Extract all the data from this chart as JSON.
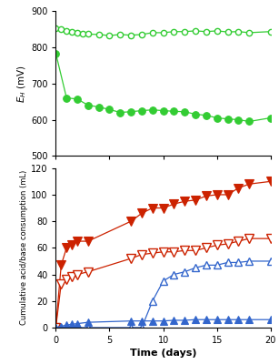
{
  "top": {
    "ylabel": "$E_{H}$ (mV)",
    "ylim": [
      500,
      900
    ],
    "yticks": [
      500,
      600,
      700,
      800,
      900
    ],
    "open_circles": {
      "x": [
        0,
        0.5,
        1,
        1.5,
        2,
        2.5,
        3,
        4,
        5,
        6,
        7,
        8,
        9,
        10,
        11,
        12,
        13,
        14,
        15,
        16,
        17,
        18,
        20
      ],
      "y": [
        852,
        850,
        845,
        843,
        840,
        837,
        836,
        835,
        832,
        835,
        833,
        835,
        840,
        840,
        843,
        843,
        845,
        843,
        845,
        842,
        843,
        840,
        843
      ]
    },
    "filled_circles": {
      "x": [
        0,
        1,
        2,
        3,
        4,
        5,
        6,
        7,
        8,
        9,
        10,
        11,
        12,
        13,
        14,
        15,
        16,
        17,
        18,
        20
      ],
      "y": [
        783,
        660,
        657,
        640,
        635,
        628,
        620,
        622,
        625,
        627,
        625,
        623,
        622,
        615,
        612,
        605,
        602,
        600,
        595,
        605
      ]
    },
    "color": "#33cc33"
  },
  "bottom": {
    "ylabel": "Cumulative acid/base consumption (mL)",
    "xlabel": "Time (days)",
    "ylim": [
      0,
      120
    ],
    "yticks": [
      0,
      20,
      40,
      60,
      80,
      100,
      120
    ],
    "filled_down_red": {
      "x": [
        0,
        0.5,
        1,
        1.5,
        2,
        3,
        7,
        8,
        9,
        10,
        11,
        12,
        13,
        14,
        15,
        16,
        17,
        18,
        20
      ],
      "y": [
        0,
        47,
        60,
        62,
        65,
        65,
        80,
        86,
        90,
        90,
        93,
        95,
        96,
        99,
        100,
        100,
        105,
        108,
        110
      ]
    },
    "open_down_red": {
      "x": [
        0,
        0.5,
        1,
        1.5,
        2,
        3,
        7,
        8,
        9,
        10,
        11,
        12,
        13,
        14,
        15,
        16,
        17,
        18,
        20
      ],
      "y": [
        0,
        33,
        36,
        38,
        40,
        42,
        52,
        55,
        56,
        57,
        57,
        58,
        58,
        60,
        62,
        63,
        65,
        67,
        67
      ]
    },
    "open_up_blue": {
      "x": [
        0,
        0.5,
        1,
        1.5,
        2,
        3,
        7,
        8,
        9,
        10,
        11,
        12,
        13,
        14,
        15,
        16,
        17,
        18,
        20
      ],
      "y": [
        0,
        0,
        0,
        0,
        0,
        0,
        0,
        0,
        20,
        35,
        40,
        42,
        45,
        47,
        47,
        49,
        49,
        50,
        50
      ]
    },
    "filled_up_blue": {
      "x": [
        0,
        0.5,
        1,
        1.5,
        2,
        3,
        7,
        8,
        9,
        10,
        11,
        12,
        13,
        14,
        15,
        16,
        17,
        18,
        20
      ],
      "y": [
        0,
        1,
        2,
        2.5,
        3,
        4,
        5,
        5,
        5,
        5,
        5.5,
        5.5,
        6,
        6,
        6,
        6,
        6,
        6,
        6
      ]
    },
    "red_color": "#cc2200",
    "blue_color": "#3366cc"
  },
  "xlim": [
    0,
    20
  ],
  "xticks": [
    0,
    5,
    10,
    15,
    20
  ],
  "figsize": [
    3.07,
    4.0
  ],
  "dpi": 100
}
